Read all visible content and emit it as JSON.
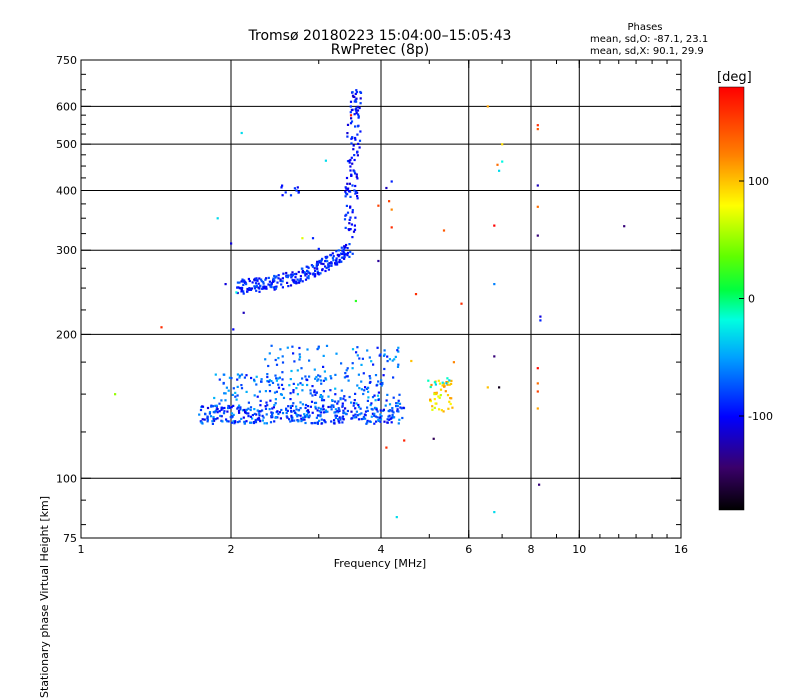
{
  "header": {
    "title_line1": "Tromsø 20180223 15:04:00–15:05:43",
    "title_line2": "RwPretec (8p)"
  },
  "phases": {
    "title": "Phases",
    "line_o": "mean, sd,O: -87.1, 23.1",
    "line_x": "mean, sd,X:  90.1, 29.9"
  },
  "chart_data": {
    "type": "scatter",
    "xlabel": "Frequency [MHz]",
    "ylabel": "Stationary phase Virtual Height [km]",
    "x_scale": "log",
    "y_scale": "log",
    "xlim": [
      1,
      16
    ],
    "ylim": [
      75,
      750
    ],
    "x_ticks": [
      {
        "value": 1,
        "label": "1"
      },
      {
        "value": 2,
        "label": "2"
      },
      {
        "value": 4,
        "label": "4"
      },
      {
        "value": 6,
        "label": "6"
      },
      {
        "value": 8,
        "label": "8"
      },
      {
        "value": 10,
        "label": "10"
      },
      {
        "value": 16,
        "label": "16"
      }
    ],
    "y_ticks": [
      {
        "value": 75,
        "label": "75"
      },
      {
        "value": 100,
        "label": "100"
      },
      {
        "value": 200,
        "label": "200"
      },
      {
        "value": 300,
        "label": "300"
      },
      {
        "value": 400,
        "label": "400"
      },
      {
        "value": 500,
        "label": "500"
      },
      {
        "value": 600,
        "label": "600"
      },
      {
        "value": 750,
        "label": "750"
      }
    ],
    "grid_x": [
      2,
      4,
      6,
      8,
      10
    ],
    "grid_y": [
      100,
      200,
      300,
      400,
      500,
      600
    ],
    "grid": true,
    "colorbar": {
      "label": "[deg]",
      "range": [
        -180,
        180
      ],
      "ticks": [
        {
          "value": 100,
          "label": "100"
        },
        {
          "value": 0,
          "label": "0"
        },
        {
          "value": -100,
          "label": "-100"
        }
      ]
    },
    "clusters": [
      {
        "name": "F-trace",
        "kind": "curve",
        "x_range": [
          2.05,
          3.45
        ],
        "y_start": 252,
        "y_end": 300,
        "spread": 0.035,
        "phase": [
          -110,
          -70
        ],
        "count": 260
      },
      {
        "name": "F-cusp",
        "kind": "vertical",
        "x_range": [
          3.3,
          3.55
        ],
        "y_range": [
          290,
          650
        ],
        "spread": 0.03,
        "phase": [
          -115,
          -75
        ],
        "count": 140
      },
      {
        "name": "F-upper",
        "kind": "box",
        "x_range": [
          2.45,
          2.75
        ],
        "y_range": [
          390,
          415
        ],
        "phase": [
          -110,
          -80
        ],
        "count": 10
      },
      {
        "name": "E-layer",
        "kind": "box",
        "x_range": [
          1.72,
          4.45
        ],
        "y_range": [
          130,
          142
        ],
        "phase": [
          -110,
          -50
        ],
        "count": 380
      },
      {
        "name": "E-mid",
        "kind": "box",
        "x_range": [
          1.85,
          4.4
        ],
        "y_range": [
          142,
          165
        ],
        "phase": [
          -100,
          -40
        ],
        "count": 210
      },
      {
        "name": "E-upper",
        "kind": "box",
        "x_range": [
          2.3,
          4.4
        ],
        "y_range": [
          165,
          190
        ],
        "phase": [
          -95,
          -40
        ],
        "count": 70
      },
      {
        "name": "Es-5MHz",
        "kind": "box",
        "x_range": [
          5.0,
          5.6
        ],
        "y_range": [
          138,
          160
        ],
        "phase": [
          60,
          120
        ],
        "count": 45
      },
      {
        "name": "Es-5MHz-b",
        "kind": "box",
        "x_range": [
          4.9,
          5.5
        ],
        "y_range": [
          155,
          162
        ],
        "phase": [
          -40,
          0
        ],
        "count": 8
      }
    ],
    "points": [
      {
        "x": 1.17,
        "y": 150,
        "phase": 50
      },
      {
        "x": 1.45,
        "y": 207,
        "phase": 160
      },
      {
        "x": 2.1,
        "y": 528,
        "phase": -30
      },
      {
        "x": 1.88,
        "y": 350,
        "phase": -30
      },
      {
        "x": 1.95,
        "y": 255,
        "phase": -110
      },
      {
        "x": 2.05,
        "y": 245,
        "phase": -20
      },
      {
        "x": 2.02,
        "y": 205,
        "phase": -100
      },
      {
        "x": 2.12,
        "y": 222,
        "phase": -120
      },
      {
        "x": 2.0,
        "y": 310,
        "phase": -110
      },
      {
        "x": 2.78,
        "y": 318,
        "phase": 70
      },
      {
        "x": 2.92,
        "y": 318,
        "phase": -90
      },
      {
        "x": 3.1,
        "y": 462,
        "phase": -30
      },
      {
        "x": 3.0,
        "y": 302,
        "phase": -90
      },
      {
        "x": 3.48,
        "y": 575,
        "phase": 170
      },
      {
        "x": 3.56,
        "y": 235,
        "phase": 20
      },
      {
        "x": 3.95,
        "y": 372,
        "phase": 150
      },
      {
        "x": 3.95,
        "y": 285,
        "phase": -130
      },
      {
        "x": 4.1,
        "y": 405,
        "phase": -120
      },
      {
        "x": 4.2,
        "y": 418,
        "phase": -90
      },
      {
        "x": 4.15,
        "y": 380,
        "phase": 150
      },
      {
        "x": 4.2,
        "y": 335,
        "phase": 160
      },
      {
        "x": 4.2,
        "y": 365,
        "phase": 120
      },
      {
        "x": 4.7,
        "y": 243,
        "phase": 160
      },
      {
        "x": 5.35,
        "y": 330,
        "phase": 140
      },
      {
        "x": 5.8,
        "y": 232,
        "phase": 160
      },
      {
        "x": 5.1,
        "y": 121,
        "phase": -150
      },
      {
        "x": 4.45,
        "y": 120,
        "phase": 165
      },
      {
        "x": 4.1,
        "y": 116,
        "phase": 160
      },
      {
        "x": 4.3,
        "y": 83,
        "phase": -30
      },
      {
        "x": 4.6,
        "y": 176,
        "phase": 100
      },
      {
        "x": 5.6,
        "y": 175,
        "phase": 120
      },
      {
        "x": 6.55,
        "y": 600,
        "phase": 110
      },
      {
        "x": 6.85,
        "y": 453,
        "phase": 130
      },
      {
        "x": 6.9,
        "y": 440,
        "phase": -30
      },
      {
        "x": 7.0,
        "y": 460,
        "phase": -20
      },
      {
        "x": 7.0,
        "y": 500,
        "phase": 90
      },
      {
        "x": 6.75,
        "y": 338,
        "phase": 180
      },
      {
        "x": 6.75,
        "y": 255,
        "phase": -60
      },
      {
        "x": 6.75,
        "y": 180,
        "phase": -140
      },
      {
        "x": 6.9,
        "y": 155,
        "phase": -170
      },
      {
        "x": 6.55,
        "y": 155,
        "phase": 100
      },
      {
        "x": 6.75,
        "y": 85,
        "phase": -30
      },
      {
        "x": 8.25,
        "y": 548,
        "phase": 160
      },
      {
        "x": 8.25,
        "y": 538,
        "phase": 140
      },
      {
        "x": 8.25,
        "y": 410,
        "phase": -120
      },
      {
        "x": 8.25,
        "y": 370,
        "phase": 130
      },
      {
        "x": 8.25,
        "y": 322,
        "phase": -140
      },
      {
        "x": 8.35,
        "y": 218,
        "phase": -110
      },
      {
        "x": 8.35,
        "y": 214,
        "phase": -90
      },
      {
        "x": 8.25,
        "y": 170,
        "phase": 175
      },
      {
        "x": 8.25,
        "y": 158,
        "phase": 130
      },
      {
        "x": 8.25,
        "y": 152,
        "phase": 150
      },
      {
        "x": 8.25,
        "y": 140,
        "phase": 110
      },
      {
        "x": 8.3,
        "y": 97,
        "phase": -140
      },
      {
        "x": 12.3,
        "y": 337,
        "phase": -140
      }
    ]
  }
}
